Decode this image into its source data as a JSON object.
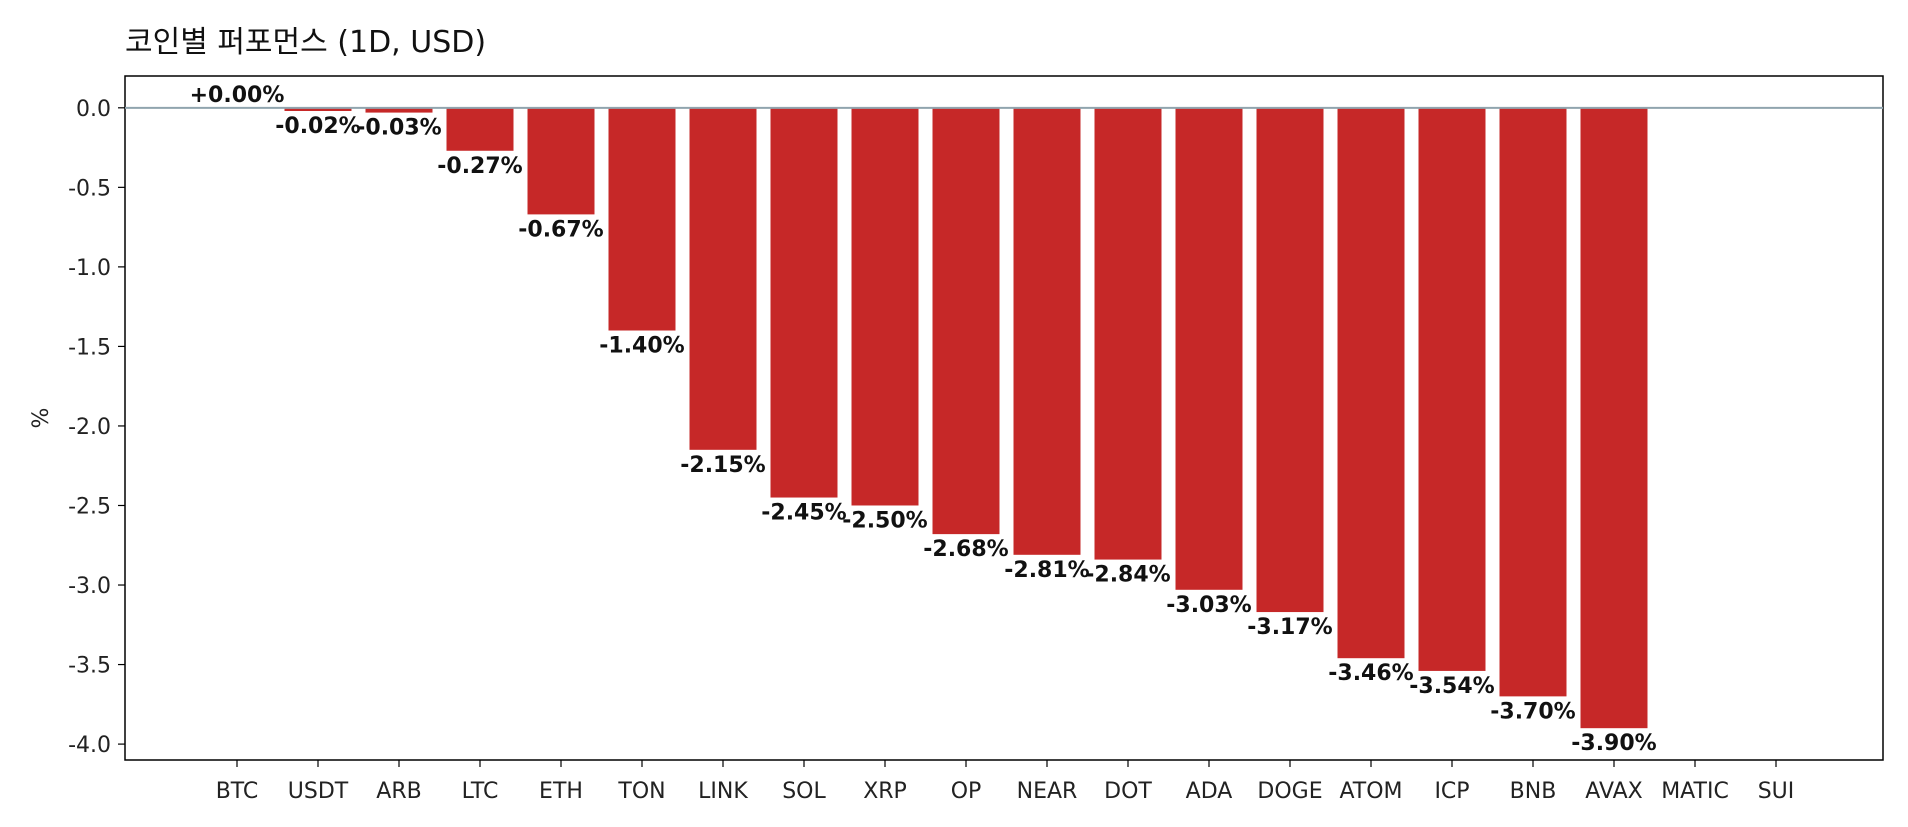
{
  "chart_data": {
    "type": "bar",
    "title": "코인별 퍼포먼스 (1D, USD)",
    "xlabel": "",
    "ylabel": "%",
    "ylim": [
      -4.1,
      0.2
    ],
    "yticks": [
      "0.0",
      "-0.5",
      "-1.0",
      "-1.5",
      "-2.0",
      "-2.5",
      "-3.0",
      "-3.5",
      "-4.0"
    ],
    "ytick_values": [
      0.0,
      -0.5,
      -1.0,
      -1.5,
      -2.0,
      -2.5,
      -3.0,
      -3.5,
      -4.0
    ],
    "categories": [
      "BTC",
      "USDT",
      "ARB",
      "LTC",
      "ETH",
      "TON",
      "LINK",
      "SOL",
      "XRP",
      "OP",
      "NEAR",
      "DOT",
      "ADA",
      "DOGE",
      "ATOM",
      "ICP",
      "BNB",
      "AVAX",
      "MATIC",
      "SUI"
    ],
    "values": [
      0.0,
      -0.02,
      -0.03,
      -0.27,
      -0.67,
      -1.4,
      -2.15,
      -2.45,
      -2.5,
      -2.68,
      -2.81,
      -2.84,
      -3.03,
      -3.17,
      -3.46,
      -3.54,
      -3.7,
      -3.9,
      null,
      null
    ],
    "labels": [
      "+0.00%",
      "-0.02%",
      "-0.03%",
      "-0.27%",
      "-0.67%",
      "-1.40%",
      "-2.15%",
      "-2.45%",
      "-2.50%",
      "-2.68%",
      "-2.81%",
      "-2.84%",
      "-3.03%",
      "-3.17%",
      "-3.46%",
      "-3.54%",
      "-3.70%",
      "-3.90%",
      "",
      ""
    ],
    "zero_line": true,
    "grid": false,
    "colors": {
      "bar": "#c62828",
      "zero_line": "#90a4ae",
      "axis": "#000000"
    }
  }
}
